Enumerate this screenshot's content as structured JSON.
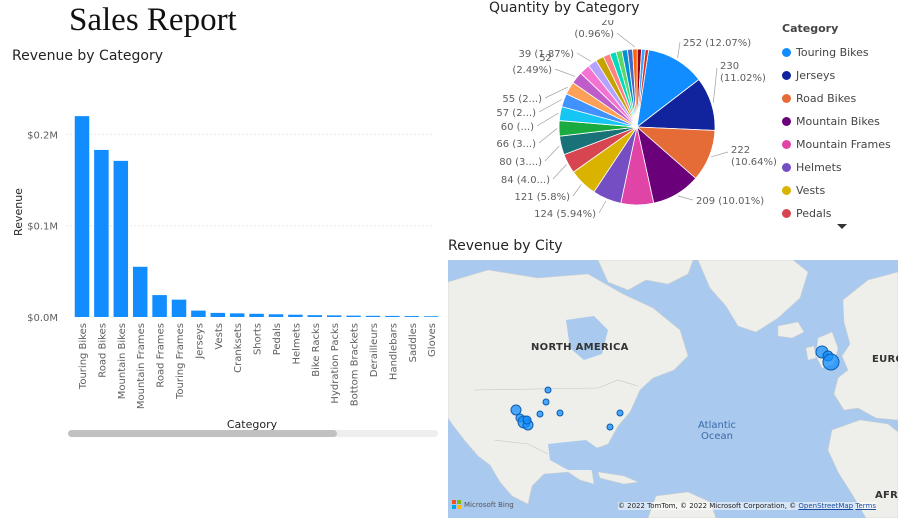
{
  "report": {
    "title": "Sales Report"
  },
  "chart_data": [
    {
      "type": "bar",
      "title": "Revenue by Category",
      "xlabel": "Category",
      "ylabel": "Revenue",
      "categories": [
        "Touring Bikes",
        "Road Bikes",
        "Mountain Bikes",
        "Mountain Frames",
        "Road Frames",
        "Touring Frames",
        "Jerseys",
        "Vests",
        "Cranksets",
        "Shorts",
        "Pedals",
        "Helmets",
        "Bike Racks",
        "Hydration Packs",
        "Bottom Brackets",
        "Derailleurs",
        "Handlebars",
        "Saddles",
        "Gloves"
      ],
      "values": [
        220000,
        183000,
        171000,
        55000,
        24000,
        19000,
        7000,
        4500,
        4000,
        3500,
        3000,
        2500,
        2000,
        1800,
        1500,
        1300,
        1200,
        1000,
        800
      ],
      "ylim": [
        0,
        230000
      ],
      "yticks": [
        0,
        100000,
        200000
      ],
      "ytick_labels": [
        "$0.0M",
        "$0.1M",
        "$0.2M"
      ],
      "grid": true,
      "color": "#118DFF"
    },
    {
      "type": "pie",
      "title": "Quantity by Category",
      "legend_title": "Category",
      "legend_position": "right",
      "slices": [
        {
          "name": "Touring Bikes",
          "value": 252,
          "color": "#118DFF",
          "label": "252 (12.07%)"
        },
        {
          "name": "Jerseys",
          "value": 230,
          "color": "#12239E",
          "label": "230 (11.02%)"
        },
        {
          "name": "Road Bikes",
          "value": 222,
          "color": "#E66C37",
          "label": "222 (10.64%)"
        },
        {
          "name": "Mountain Bikes",
          "value": 209,
          "color": "#6B007B",
          "label": "209 (10.01%)"
        },
        {
          "name": "Mountain Frames",
          "value": 140,
          "color": "#E044A7",
          "label": ""
        },
        {
          "name": "Helmets",
          "value": 124,
          "color": "#744EC2",
          "label": "124 (5.94%)"
        },
        {
          "name": "Vests",
          "value": 121,
          "color": "#D9B300",
          "label": "121 (5.8%)"
        },
        {
          "name": "Pedals",
          "value": 84,
          "color": "#D64550",
          "label": "84 (4.0...)"
        },
        {
          "name": "",
          "value": 80,
          "color": "#197278",
          "label": "80 (3....)"
        },
        {
          "name": "",
          "value": 66,
          "color": "#1AAB40",
          "label": "66 (3...)"
        },
        {
          "name": "",
          "value": 60,
          "color": "#15C6F4",
          "label": "60 (...)"
        },
        {
          "name": "",
          "value": 57,
          "color": "#4092FF",
          "label": "57 (2...)"
        },
        {
          "name": "",
          "value": 55,
          "color": "#FFA058",
          "label": "55 (2...)"
        },
        {
          "name": "",
          "value": 52,
          "color": "#BE5DC9",
          "label": "52 (2.49%)"
        },
        {
          "name": "",
          "value": 45,
          "color": "#F472D0",
          "label": ""
        },
        {
          "name": "",
          "value": 39,
          "color": "#B5A1FF",
          "label": "39 (1.87%)"
        },
        {
          "name": "",
          "value": 35,
          "color": "#C4A200",
          "label": ""
        },
        {
          "name": "",
          "value": 30,
          "color": "#FF8080",
          "label": ""
        },
        {
          "name": "",
          "value": 27,
          "color": "#00DBBC",
          "label": ""
        },
        {
          "name": "",
          "value": 25,
          "color": "#5BD667",
          "label": ""
        },
        {
          "name": "",
          "value": 24,
          "color": "#0091D5",
          "label": ""
        },
        {
          "name": "",
          "value": 22,
          "color": "#4668C5",
          "label": ""
        },
        {
          "name": "",
          "value": 20,
          "color": "#FF6300",
          "label": "20 (0.96%)"
        },
        {
          "name": "",
          "value": 18,
          "color": "#99001A",
          "label": ""
        },
        {
          "name": "",
          "value": 16,
          "color": "#35A4FF",
          "label": ""
        },
        {
          "name": "",
          "value": 14,
          "color": "#D82C20",
          "label": ""
        }
      ],
      "legend_items": [
        "Touring Bikes",
        "Jerseys",
        "Road Bikes",
        "Mountain Bikes",
        "Mountain Frames",
        "Helmets",
        "Vests",
        "Pedals"
      ]
    }
  ],
  "map": {
    "title": "Revenue by City",
    "labels": {
      "north_america": "NORTH AMERICA",
      "europe": "EURO",
      "africa": "AFRI",
      "ocean_line1": "Atlantic",
      "ocean_line2": "Ocean"
    },
    "bing": "Microsoft Bing",
    "attribution_prefix": "© 2022 TomTom, © 2022 Microsoft Corporation, ©",
    "attribution_osm": "OpenStreetMap",
    "attribution_terms": "Terms",
    "bubble_color": "#118DFF"
  }
}
